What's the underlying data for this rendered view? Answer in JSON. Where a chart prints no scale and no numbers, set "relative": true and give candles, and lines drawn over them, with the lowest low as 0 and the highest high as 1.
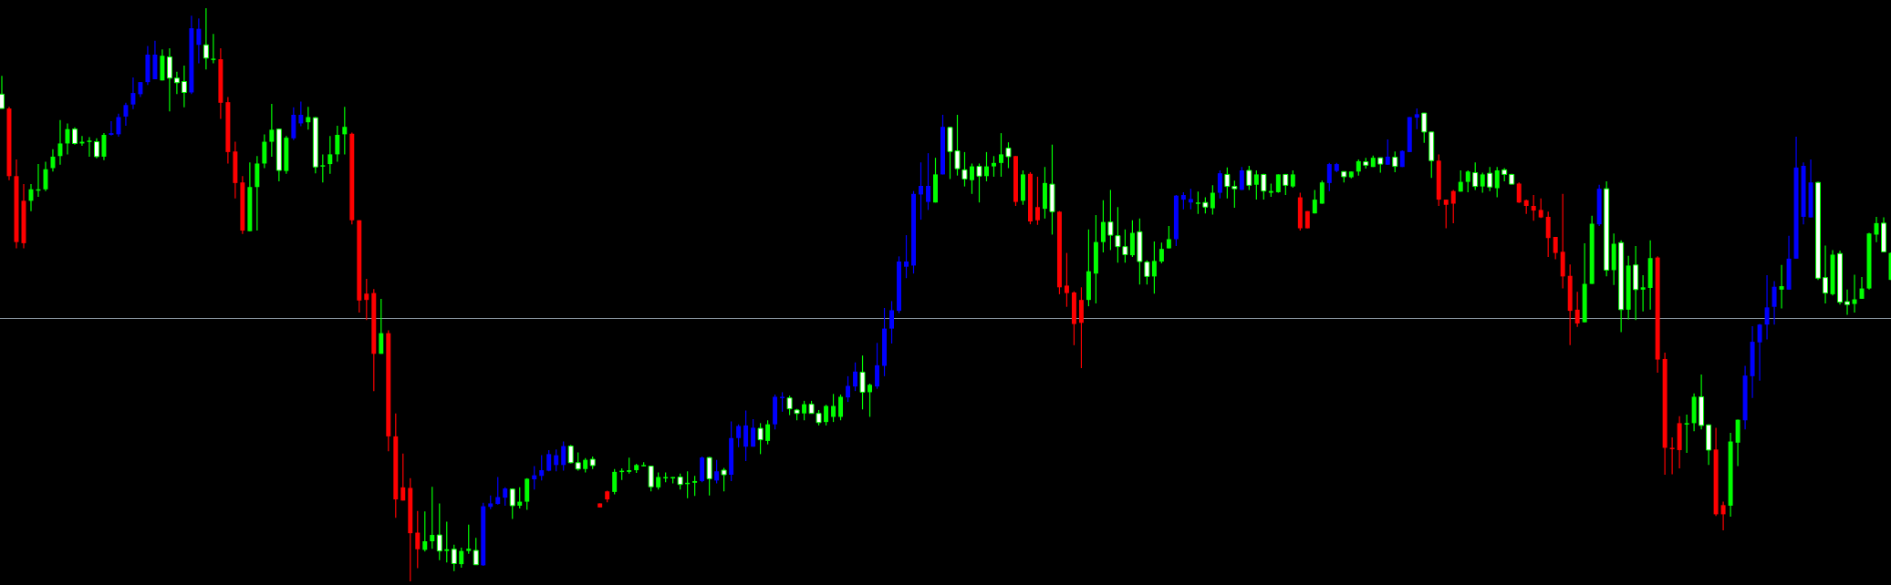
{
  "chart_data": {
    "type": "candlestick",
    "relative": true,
    "legend": false,
    "categories": [
      null,
      null,
      null,
      null,
      null,
      null,
      null,
      null,
      null,
      null,
      null,
      null,
      null,
      null,
      null,
      null,
      null,
      null,
      null,
      null,
      null,
      null,
      null,
      null,
      null,
      null,
      null,
      null,
      null,
      null,
      null,
      null,
      null,
      null,
      null,
      null,
      null,
      null,
      null,
      null,
      null,
      null,
      null,
      null,
      null,
      null,
      null,
      null,
      null,
      null,
      null,
      null,
      null,
      null,
      null,
      null,
      null,
      null,
      null,
      null,
      null,
      null,
      null,
      null,
      null,
      null,
      null,
      null,
      null,
      null,
      null,
      null,
      null,
      null,
      null,
      null,
      null,
      null,
      null,
      null,
      null,
      null,
      null,
      null,
      null,
      null,
      null,
      null,
      null,
      null,
      null,
      null,
      null,
      null,
      null,
      null,
      null,
      null,
      null,
      null,
      null,
      null,
      null,
      null,
      null,
      null,
      null,
      null,
      null,
      null,
      null,
      null,
      null,
      null,
      null,
      null,
      null,
      null,
      null,
      null,
      null,
      null,
      null,
      null,
      null,
      null,
      null,
      null,
      null,
      null,
      null,
      null,
      null,
      null,
      null,
      null,
      null,
      null,
      null,
      null,
      null,
      null,
      null,
      null,
      null,
      null,
      null,
      null,
      null,
      null,
      null,
      null,
      null,
      null,
      null,
      null,
      null,
      null,
      null,
      null,
      null,
      null,
      null,
      null,
      null,
      null,
      null,
      null,
      null,
      null,
      null,
      null,
      null,
      null,
      null,
      null,
      null,
      null,
      null,
      null,
      null,
      null,
      null,
      null,
      null,
      null,
      null,
      null,
      null,
      null,
      null,
      null,
      null,
      null,
      null,
      null,
      null,
      null,
      null,
      null,
      null,
      null,
      null,
      null,
      null,
      null,
      null,
      null,
      null,
      null,
      null,
      null,
      null,
      null,
      null,
      null,
      null,
      null,
      null,
      null,
      null,
      null,
      null,
      null,
      null,
      null,
      null,
      null,
      null,
      null,
      null,
      null,
      null,
      null,
      null,
      null,
      null,
      null,
      null,
      null,
      null,
      null,
      null,
      null,
      null,
      null,
      null,
      null,
      null,
      null,
      null,
      null,
      null,
      null,
      null,
      null,
      null,
      null,
      null,
      null
    ],
    "ohlc": [
      [
        0.825,
        0.882,
        0.825,
        0.85
      ],
      [
        0.825,
        0.828,
        0.7,
        0.707
      ],
      [
        0.707,
        0.736,
        0.581,
        0.592
      ],
      [
        0.664,
        0.693,
        0.581,
        0.59
      ],
      [
        0.664,
        0.693,
        0.646,
        0.684
      ],
      [
        0.682,
        0.728,
        0.671,
        0.684
      ],
      [
        0.684,
        0.732,
        0.681,
        0.719
      ],
      [
        0.721,
        0.754,
        0.715,
        0.741
      ],
      [
        0.742,
        0.805,
        0.727,
        0.764
      ],
      [
        0.764,
        0.799,
        0.745,
        0.789
      ],
      [
        0.764,
        0.792,
        0.762,
        0.789
      ],
      [
        0.764,
        0.777,
        0.76,
        0.767
      ],
      [
        0.767,
        0.775,
        0.741,
        0.769
      ],
      [
        0.741,
        0.773,
        0.738,
        0.767
      ],
      [
        0.741,
        0.782,
        0.735,
        0.779
      ],
      [
        0.779,
        0.803,
        0.778,
        0.782
      ],
      [
        0.78,
        0.816,
        0.776,
        0.81
      ],
      [
        0.811,
        0.835,
        0.795,
        0.831
      ],
      [
        0.832,
        0.879,
        0.824,
        0.852
      ],
      [
        0.85,
        0.871,
        0.845,
        0.871
      ],
      [
        0.871,
        0.934,
        0.866,
        0.919
      ],
      [
        0.876,
        0.943,
        0.876,
        0.919
      ],
      [
        0.874,
        0.928,
        0.874,
        0.917
      ],
      [
        0.878,
        0.93,
        0.82,
        0.915
      ],
      [
        0.87,
        0.889,
        0.85,
        0.878
      ],
      [
        0.853,
        0.9,
        0.827,
        0.872
      ],
      [
        0.853,
        0.987,
        0.85,
        0.965
      ],
      [
        0.936,
        0.982,
        0.904,
        0.964
      ],
      [
        0.913,
        1,
        0.893,
        0.936
      ],
      [
        0.91,
        0.955,
        0.904,
        0.912
      ],
      [
        0.911,
        0.93,
        0.807,
        0.835
      ],
      [
        0.836,
        0.845,
        0.729,
        0.749
      ],
      [
        0.75,
        0.767,
        0.668,
        0.695
      ],
      [
        0.696,
        0.707,
        0.606,
        0.612
      ],
      [
        0.611,
        0.731,
        0.611,
        0.688
      ],
      [
        0.688,
        0.742,
        0.612,
        0.729
      ],
      [
        0.729,
        0.78,
        0.721,
        0.767
      ],
      [
        0.767,
        0.833,
        0.741,
        0.788
      ],
      [
        0.717,
        0.79,
        0.698,
        0.789
      ],
      [
        0.716,
        0.777,
        0.711,
        0.774
      ],
      [
        0.773,
        0.827,
        0.77,
        0.814
      ],
      [
        0.799,
        0.837,
        0.794,
        0.814
      ],
      [
        0.801,
        0.828,
        0.788,
        0.81
      ],
      [
        0.723,
        0.81,
        0.712,
        0.809
      ],
      [
        0.724,
        0.745,
        0.696,
        0.726
      ],
      [
        0.728,
        0.777,
        0.711,
        0.745
      ],
      [
        0.745,
        0.795,
        0.732,
        0.779
      ],
      [
        0.78,
        0.828,
        0.745,
        0.793
      ],
      [
        0.781,
        0.783,
        0.623,
        0.63
      ],
      [
        0.63,
        0.63,
        0.469,
        0.49
      ],
      [
        0.502,
        0.528,
        0.456,
        0.491
      ],
      [
        0.503,
        0.51,
        0.332,
        0.397
      ],
      [
        0.397,
        0.493,
        0.397,
        0.433
      ],
      [
        0.433,
        0.438,
        0.227,
        0.253
      ],
      [
        0.253,
        0.293,
        0.111,
        0.143
      ],
      [
        0.164,
        0.223,
        0.141,
        0.141
      ],
      [
        0.163,
        0.18,
        0,
        0.084
      ],
      [
        0.085,
        0.123,
        0.023,
        0.056
      ],
      [
        0.055,
        0.122,
        0.052,
        0.07
      ],
      [
        0.07,
        0.165,
        0.057,
        0.081
      ],
      [
        0.053,
        0.136,
        0.037,
        0.081
      ],
      [
        0.053,
        0.104,
        0.033,
        0.056
      ],
      [
        0.031,
        0.064,
        0.018,
        0.056
      ],
      [
        0.03,
        0.059,
        0.024,
        0.053
      ],
      [
        0.053,
        0.099,
        0.048,
        0.057
      ],
      [
        0.029,
        0.076,
        0.029,
        0.054
      ],
      [
        0.028,
        0.137,
        0.027,
        0.131
      ],
      [
        0.13,
        0.15,
        0.126,
        0.136
      ],
      [
        0.135,
        0.182,
        0.134,
        0.147
      ],
      [
        0.146,
        0.164,
        0.132,
        0.162
      ],
      [
        0.132,
        0.162,
        0.109,
        0.161
      ],
      [
        0.132,
        0.164,
        0.127,
        0.139
      ],
      [
        0.139,
        0.18,
        0.125,
        0.179
      ],
      [
        0.178,
        0.201,
        0.16,
        0.185
      ],
      [
        0.184,
        0.22,
        0.176,
        0.194
      ],
      [
        0.193,
        0.229,
        0.192,
        0.222
      ],
      [
        0.203,
        0.23,
        0.192,
        0.22
      ],
      [
        0.203,
        0.244,
        0.193,
        0.236
      ],
      [
        0.207,
        0.238,
        0.206,
        0.236
      ],
      [
        0.196,
        0.225,
        0.193,
        0.207
      ],
      [
        0.196,
        0.215,
        0.19,
        0.212
      ],
      [
        0.202,
        0.218,
        0.196,
        0.213
      ],
      [
        0.136,
        0.136,
        0.129,
        0.129
      ],
      [
        0.157,
        0.158,
        0.138,
        0.143
      ],
      [
        0.156,
        0.196,
        0.152,
        0.191
      ],
      [
        0.191,
        0.197,
        0.177,
        0.193
      ],
      [
        0.191,
        0.216,
        0.188,
        0.194
      ],
      [
        0.194,
        0.205,
        0.189,
        0.203
      ],
      [
        0.201,
        0.208,
        0.201,
        0.203
      ],
      [
        0.165,
        0.202,
        0.157,
        0.201
      ],
      [
        0.164,
        0.19,
        0.16,
        0.182
      ],
      [
        0.18,
        0.19,
        0.173,
        0.182
      ],
      [
        0.181,
        0.182,
        0.171,
        0.182
      ],
      [
        0.169,
        0.188,
        0.16,
        0.182
      ],
      [
        0.17,
        0.192,
        0.145,
        0.172
      ],
      [
        0.172,
        0.184,
        0.149,
        0.175
      ],
      [
        0.175,
        0.218,
        0.173,
        0.216
      ],
      [
        0.179,
        0.217,
        0.15,
        0.216
      ],
      [
        0.176,
        0.212,
        0.171,
        0.192
      ],
      [
        0.186,
        0.198,
        0.157,
        0.194
      ],
      [
        0.186,
        0.279,
        0.175,
        0.25
      ],
      [
        0.25,
        0.274,
        0.234,
        0.271
      ],
      [
        0.235,
        0.298,
        0.21,
        0.272
      ],
      [
        0.235,
        0.283,
        0.235,
        0.268
      ],
      [
        0.247,
        0.276,
        0.222,
        0.267
      ],
      [
        0.245,
        0.281,
        0.239,
        0.274
      ],
      [
        0.274,
        0.326,
        0.265,
        0.322
      ],
      [
        0.321,
        0.33,
        0.296,
        0.322
      ],
      [
        0.301,
        0.324,
        0.29,
        0.32
      ],
      [
        0.293,
        0.301,
        0.281,
        0.299
      ],
      [
        0.293,
        0.315,
        0.281,
        0.309
      ],
      [
        0.293,
        0.315,
        0.293,
        0.309
      ],
      [
        0.277,
        0.299,
        0.272,
        0.293
      ],
      [
        0.278,
        0.308,
        0.272,
        0.306
      ],
      [
        0.287,
        0.327,
        0.278,
        0.306
      ],
      [
        0.287,
        0.326,
        0.281,
        0.322
      ],
      [
        0.321,
        0.358,
        0.313,
        0.341
      ],
      [
        0.34,
        0.382,
        0.332,
        0.366
      ],
      [
        0.33,
        0.394,
        0.3,
        0.365
      ],
      [
        0.33,
        0.345,
        0.287,
        0.343
      ],
      [
        0.34,
        0.416,
        0.336,
        0.377
      ],
      [
        0.376,
        0.477,
        0.358,
        0.441
      ],
      [
        0.441,
        0.489,
        0.415,
        0.473
      ],
      [
        0.472,
        0.567,
        0.468,
        0.558
      ],
      [
        0.549,
        0.604,
        0.529,
        0.558
      ],
      [
        0.551,
        0.681,
        0.537,
        0.676
      ],
      [
        0.675,
        0.731,
        0.631,
        0.69
      ],
      [
        0.662,
        0.747,
        0.648,
        0.69
      ],
      [
        0.661,
        0.739,
        0.661,
        0.71
      ],
      [
        0.71,
        0.814,
        0.71,
        0.793
      ],
      [
        0.75,
        0.793,
        0.702,
        0.792
      ],
      [
        0.72,
        0.814,
        0.708,
        0.751
      ],
      [
        0.702,
        0.749,
        0.689,
        0.718
      ],
      [
        0.7,
        0.729,
        0.676,
        0.724
      ],
      [
        0.707,
        0.729,
        0.661,
        0.724
      ],
      [
        0.707,
        0.749,
        0.698,
        0.724
      ],
      [
        0.724,
        0.742,
        0.706,
        0.73
      ],
      [
        0.73,
        0.782,
        0.706,
        0.745
      ],
      [
        0.741,
        0.766,
        0.721,
        0.756
      ],
      [
        0.742,
        0.742,
        0.655,
        0.662
      ],
      [
        0.664,
        0.717,
        0.657,
        0.71
      ],
      [
        0.711,
        0.714,
        0.623,
        0.628
      ],
      [
        0.653,
        0.706,
        0.622,
        0.63
      ],
      [
        0.65,
        0.723,
        0.633,
        0.695
      ],
      [
        0.645,
        0.762,
        0.605,
        0.693
      ],
      [
        0.645,
        0.646,
        0.501,
        0.513
      ],
      [
        0.516,
        0.573,
        0.479,
        0.503
      ],
      [
        0.504,
        0.506,
        0.412,
        0.449
      ],
      [
        0.491,
        0.513,
        0.372,
        0.451
      ],
      [
        0.491,
        0.614,
        0.48,
        0.541
      ],
      [
        0.537,
        0.639,
        0.485,
        0.592
      ],
      [
        0.592,
        0.665,
        0.574,
        0.627
      ],
      [
        0.604,
        0.683,
        0.578,
        0.627
      ],
      [
        0.584,
        0.653,
        0.556,
        0.603
      ],
      [
        0.57,
        0.614,
        0.556,
        0.584
      ],
      [
        0.569,
        0.63,
        0.566,
        0.608
      ],
      [
        0.558,
        0.633,
        0.518,
        0.61
      ],
      [
        0.532,
        0.56,
        0.518,
        0.557
      ],
      [
        0.532,
        0.593,
        0.502,
        0.559
      ],
      [
        0.558,
        0.591,
        0.555,
        0.58
      ],
      [
        0.581,
        0.62,
        0.581,
        0.597
      ],
      [
        0.597,
        0.674,
        0.585,
        0.673
      ],
      [
        0.666,
        0.679,
        0.649,
        0.674
      ],
      [
        0.661,
        0.685,
        0.649,
        0.667
      ],
      [
        0.66,
        0.68,
        0.641,
        0.661
      ],
      [
        0.653,
        0.67,
        0.642,
        0.661
      ],
      [
        0.651,
        0.691,
        0.64,
        0.678
      ],
      [
        0.678,
        0.717,
        0.668,
        0.712
      ],
      [
        0.689,
        0.722,
        0.668,
        0.71
      ],
      [
        0.685,
        0.699,
        0.652,
        0.689
      ],
      [
        0.683,
        0.723,
        0.683,
        0.717
      ],
      [
        0.691,
        0.725,
        0.683,
        0.717
      ],
      [
        0.692,
        0.717,
        0.666,
        0.71
      ],
      [
        0.681,
        0.711,
        0.666,
        0.71
      ],
      [
        0.678,
        0.694,
        0.671,
        0.681
      ],
      [
        0.679,
        0.71,
        0.678,
        0.71
      ],
      [
        0.691,
        0.71,
        0.674,
        0.71
      ],
      [
        0.689,
        0.717,
        0.687,
        0.71
      ],
      [
        0.67,
        0.678,
        0.612,
        0.616
      ],
      [
        0.646,
        0.646,
        0.616,
        0.616
      ],
      [
        0.642,
        0.683,
        0.642,
        0.666
      ],
      [
        0.659,
        0.699,
        0.659,
        0.696
      ],
      [
        0.695,
        0.73,
        0.681,
        0.728
      ],
      [
        0.716,
        0.73,
        0.714,
        0.728
      ],
      [
        0.706,
        0.715,
        0.696,
        0.715
      ],
      [
        0.705,
        0.715,
        0.703,
        0.715
      ],
      [
        0.715,
        0.736,
        0.708,
        0.733
      ],
      [
        0.726,
        0.739,
        0.72,
        0.732
      ],
      [
        0.723,
        0.743,
        0.723,
        0.739
      ],
      [
        0.728,
        0.739,
        0.713,
        0.739
      ],
      [
        0.727,
        0.771,
        0.727,
        0.741
      ],
      [
        0.724,
        0.75,
        0.714,
        0.74
      ],
      [
        0.723,
        0.752,
        0.723,
        0.751
      ],
      [
        0.749,
        0.81,
        0.749,
        0.81
      ],
      [
        0.809,
        0.825,
        0.789,
        0.815
      ],
      [
        0.784,
        0.817,
        0.765,
        0.817
      ],
      [
        0.734,
        0.784,
        0.704,
        0.784
      ],
      [
        0.734,
        0.745,
        0.655,
        0.666
      ],
      [
        0.666,
        0.666,
        0.616,
        0.657
      ],
      [
        0.681,
        0.683,
        0.625,
        0.659
      ],
      [
        0.68,
        0.717,
        0.68,
        0.697
      ],
      [
        0.697,
        0.717,
        0.679,
        0.715
      ],
      [
        0.689,
        0.731,
        0.683,
        0.713
      ],
      [
        0.689,
        0.713,
        0.678,
        0.71
      ],
      [
        0.688,
        0.723,
        0.681,
        0.712
      ],
      [
        0.686,
        0.723,
        0.67,
        0.717
      ],
      [
        0.71,
        0.721,
        0.698,
        0.718
      ],
      [
        0.693,
        0.711,
        0.693,
        0.71
      ],
      [
        0.694,
        0.696,
        0.66,
        0.661
      ],
      [
        0.665,
        0.666,
        0.641,
        0.655
      ],
      [
        0.655,
        0.674,
        0.629,
        0.647
      ],
      [
        0.648,
        0.668,
        0.634,
        0.635
      ],
      [
        0.636,
        0.645,
        0.566,
        0.599
      ],
      [
        0.601,
        0.601,
        0.562,
        0.573
      ],
      [
        0.575,
        0.676,
        0.511,
        0.532
      ],
      [
        0.533,
        0.553,
        0.412,
        0.472
      ],
      [
        0.474,
        0.505,
        0.444,
        0.45
      ],
      [
        0.452,
        0.59,
        0.452,
        0.519
      ],
      [
        0.519,
        0.638,
        0.519,
        0.624
      ],
      [
        0.623,
        0.692,
        0.62,
        0.685
      ],
      [
        0.543,
        0.698,
        0.532,
        0.685
      ],
      [
        0.543,
        0.607,
        0.517,
        0.589
      ],
      [
        0.474,
        0.595,
        0.435,
        0.591
      ],
      [
        0.474,
        0.568,
        0.457,
        0.551
      ],
      [
        0.509,
        0.585,
        0.456,
        0.552
      ],
      [
        0.509,
        0.534,
        0.471,
        0.513
      ],
      [
        0.512,
        0.595,
        0.474,
        0.564
      ],
      [
        0.565,
        0.567,
        0.364,
        0.387
      ],
      [
        0.388,
        0.399,
        0.186,
        0.233
      ],
      [
        0.233,
        0.251,
        0.187,
        0.231
      ],
      [
        0.276,
        0.288,
        0.197,
        0.229
      ],
      [
        0.275,
        0.291,
        0.224,
        0.276
      ],
      [
        0.276,
        0.328,
        0.262,
        0.322
      ],
      [
        0.272,
        0.361,
        0.265,
        0.322
      ],
      [
        0.229,
        0.274,
        0.203,
        0.273
      ],
      [
        0.23,
        0.268,
        0.114,
        0.117
      ],
      [
        0.133,
        0.139,
        0.089,
        0.117
      ],
      [
        0.132,
        0.259,
        0.113,
        0.244
      ],
      [
        0.242,
        0.282,
        0.201,
        0.282
      ],
      [
        0.281,
        0.376,
        0.265,
        0.359
      ],
      [
        0.358,
        0.445,
        0.32,
        0.418
      ],
      [
        0.417,
        0.449,
        0.35,
        0.448
      ],
      [
        0.448,
        0.534,
        0.422,
        0.478
      ],
      [
        0.479,
        0.524,
        0.448,
        0.514
      ],
      [
        0.509,
        0.552,
        0.476,
        0.515
      ],
      [
        0.509,
        0.603,
        0.509,
        0.563
      ],
      [
        0.563,
        0.776,
        0.563,
        0.722
      ],
      [
        0.636,
        0.731,
        0.623,
        0.725
      ],
      [
        0.635,
        0.736,
        0.635,
        0.696
      ],
      [
        0.529,
        0.697,
        0.526,
        0.696
      ],
      [
        0.503,
        0.586,
        0.485,
        0.53
      ],
      [
        0.501,
        0.578,
        0.499,
        0.57
      ],
      [
        0.487,
        0.577,
        0.483,
        0.572
      ],
      [
        0.483,
        0.509,
        0.465,
        0.488
      ],
      [
        0.484,
        0.535,
        0.469,
        0.492
      ],
      [
        0.493,
        0.531,
        0.493,
        0.511
      ],
      [
        0.511,
        0.608,
        0.509,
        0.607
      ],
      [
        0.605,
        0.636,
        0.592,
        0.625
      ],
      [
        0.575,
        0.635,
        0.575,
        0.625
      ],
      [
        0.526,
        0.574,
        0.526,
        0.573
      ]
    ],
    "colors": [
      "#ffffff",
      "#ff0000",
      "#ff0000",
      "#ff0000",
      "#00ff00",
      "#00ff00",
      "#00ff00",
      "#00ff00",
      "#00ff00",
      "#00ff00",
      "#ffffff",
      "#00ff00",
      "#00ff00",
      "#ffffff",
      "#00ff00",
      "#0000ff",
      "#0000ff",
      "#0000ff",
      "#0000ff",
      "#0000ff",
      "#0000ff",
      "#0000ff",
      "#00ff00",
      "#ffffff",
      "#ffffff",
      "#ffffff",
      "#0000ff",
      "#0000ff",
      "#ffffff",
      "#00ff00",
      "#ff0000",
      "#ff0000",
      "#ff0000",
      "#ff0000",
      "#00ff00",
      "#00ff00",
      "#00ff00",
      "#00ff00",
      "#ffffff",
      "#00ff00",
      "#0000ff",
      "#0000ff",
      "#00ff00",
      "#ffffff",
      "#00ff00",
      "#00ff00",
      "#00ff00",
      "#00ff00",
      "#ff0000",
      "#ff0000",
      "#ff0000",
      "#ff0000",
      "#00ff00",
      "#ff0000",
      "#ff0000",
      "#ff0000",
      "#ff0000",
      "#ff0000",
      "#00ff00",
      "#00ff00",
      "#ffffff",
      "#00ff00",
      "#ffffff",
      "#00ff00",
      "#00ff00",
      "#ffffff",
      "#0000ff",
      "#0000ff",
      "#0000ff",
      "#0000ff",
      "#ffffff",
      "#00ff00",
      "#00ff00",
      "#0000ff",
      "#0000ff",
      "#0000ff",
      "#0000ff",
      "#0000ff",
      "#ffffff",
      "#ffffff",
      "#00ff00",
      "#ffffff",
      "#ff0000",
      "#ff0000",
      "#00ff00",
      "#00ff00",
      "#00ff00",
      "#00ff00",
      "#00ff00",
      "#ffffff",
      "#00ff00",
      "#00ff00",
      "#00ff00",
      "#ffffff",
      "#00ff00",
      "#00ff00",
      "#0000ff",
      "#ffffff",
      "#0000ff",
      "#ffffff",
      "#0000ff",
      "#0000ff",
      "#0000ff",
      "#0000ff",
      "#ffffff",
      "#00ff00",
      "#0000ff",
      "#0000ff",
      "#ffffff",
      "#ffffff",
      "#00ff00",
      "#ffffff",
      "#ffffff",
      "#00ff00",
      "#00ff00",
      "#00ff00",
      "#0000ff",
      "#0000ff",
      "#ffffff",
      "#00ff00",
      "#0000ff",
      "#0000ff",
      "#0000ff",
      "#0000ff",
      "#0000ff",
      "#0000ff",
      "#0000ff",
      "#0000ff",
      "#00ff00",
      "#0000ff",
      "#ffffff",
      "#ffffff",
      "#ffffff",
      "#00ff00",
      "#ffffff",
      "#00ff00",
      "#00ff00",
      "#00ff00",
      "#ffffff",
      "#ff0000",
      "#00ff00",
      "#ff0000",
      "#ff0000",
      "#00ff00",
      "#ffffff",
      "#ff0000",
      "#ff0000",
      "#ff0000",
      "#ff0000",
      "#00ff00",
      "#00ff00",
      "#00ff00",
      "#ffffff",
      "#ffffff",
      "#ffffff",
      "#00ff00",
      "#ffffff",
      "#ffffff",
      "#00ff00",
      "#00ff00",
      "#00ff00",
      "#0000ff",
      "#0000ff",
      "#0000ff",
      "#00ff00",
      "#ffffff",
      "#00ff00",
      "#0000ff",
      "#ffffff",
      "#ffffff",
      "#0000ff",
      "#ffffff",
      "#00ff00",
      "#ffffff",
      "#00ff00",
      "#00ff00",
      "#ffffff",
      "#00ff00",
      "#ff0000",
      "#ff0000",
      "#00ff00",
      "#00ff00",
      "#0000ff",
      "#0000ff",
      "#ffffff",
      "#00ff00",
      "#00ff00",
      "#ffffff",
      "#00ff00",
      "#ffffff",
      "#0000ff",
      "#ffffff",
      "#0000ff",
      "#0000ff",
      "#0000ff",
      "#ffffff",
      "#ffffff",
      "#ff0000",
      "#ff0000",
      "#ff0000",
      "#00ff00",
      "#00ff00",
      "#ffffff",
      "#00ff00",
      "#ffffff",
      "#00ff00",
      "#ffffff",
      "#ffffff",
      "#ff0000",
      "#ff0000",
      "#ff0000",
      "#ff0000",
      "#ff0000",
      "#ff0000",
      "#ff0000",
      "#ff0000",
      "#ff0000",
      "#00ff00",
      "#00ff00",
      "#0000ff",
      "#ffffff",
      "#00ff00",
      "#ffffff",
      "#00ff00",
      "#ffffff",
      "#00ff00",
      "#00ff00",
      "#ff0000",
      "#ff0000",
      "#ff0000",
      "#ff0000",
      "#00ff00",
      "#00ff00",
      "#ffffff",
      "#ffffff",
      "#ff0000",
      "#ff0000",
      "#00ff00",
      "#00ff00",
      "#0000ff",
      "#0000ff",
      "#0000ff",
      "#0000ff",
      "#0000ff",
      "#00ff00",
      "#0000ff",
      "#0000ff",
      "#0000ff",
      "#0000ff",
      "#ffffff",
      "#ffffff",
      "#00ff00",
      "#ffffff",
      "#ffffff",
      "#00ff00",
      "#00ff00",
      "#00ff00",
      "#00ff00",
      "#ffffff",
      "#00ff00"
    ],
    "ref_lines": [
      {
        "axis": "y",
        "value": 0.459,
        "color": "#8a96a0"
      }
    ]
  }
}
